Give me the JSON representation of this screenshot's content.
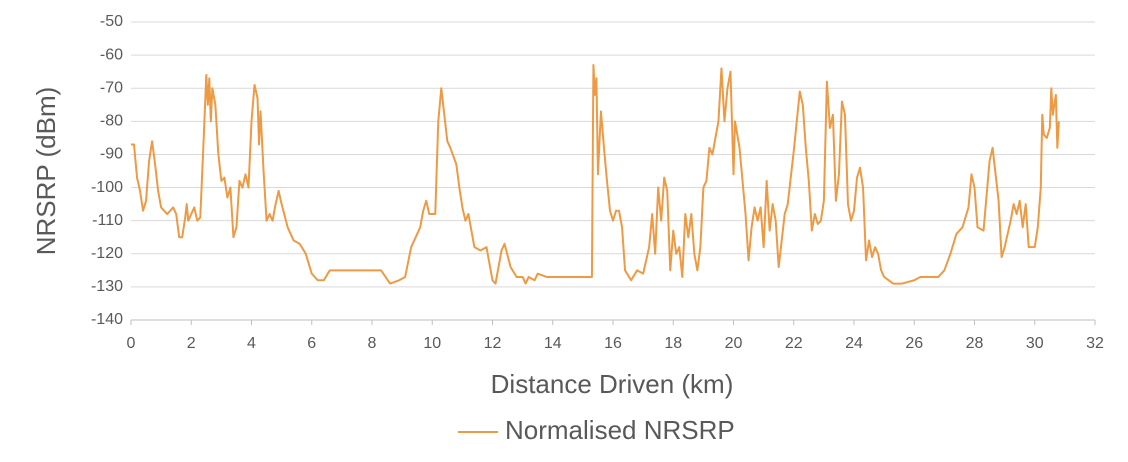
{
  "chart_data": {
    "type": "line",
    "x_label": "Distance Driven (km)",
    "y_label": "NRSRP (dBm)",
    "xlim": [
      0,
      32
    ],
    "xticks": [
      0,
      2,
      4,
      6,
      8,
      10,
      12,
      14,
      16,
      18,
      20,
      22,
      24,
      26,
      28,
      30,
      32
    ],
    "ylim": [
      -140,
      -50
    ],
    "yticks": [
      -140,
      -130,
      -120,
      -110,
      -100,
      -90,
      -80,
      -70,
      -60,
      -50
    ],
    "grid": true,
    "legend": "bottom",
    "x": [
      0,
      0.1,
      0.2,
      0.3,
      0.4,
      0.5,
      0.6,
      0.7,
      0.8,
      0.9,
      1.0,
      1.2,
      1.4,
      1.5,
      1.6,
      1.7,
      1.8,
      1.85,
      1.9,
      2.0,
      2.1,
      2.2,
      2.3,
      2.4,
      2.5,
      2.55,
      2.6,
      2.65,
      2.7,
      2.8,
      2.9,
      3.0,
      3.1,
      3.2,
      3.3,
      3.4,
      3.5,
      3.6,
      3.7,
      3.8,
      3.9,
      4.0,
      4.1,
      4.2,
      4.25,
      4.3,
      4.4,
      4.5,
      4.6,
      4.7,
      4.8,
      4.9,
      5.0,
      5.2,
      5.4,
      5.6,
      5.8,
      6.0,
      6.2,
      6.4,
      6.6,
      8.0,
      8.3,
      8.6,
      8.9,
      9.1,
      9.3,
      9.6,
      9.7,
      9.8,
      9.9,
      10.1,
      10.2,
      10.3,
      10.4,
      10.5,
      10.6,
      10.8,
      10.9,
      11.0,
      11.1,
      11.2,
      11.4,
      11.6,
      11.8,
      12.0,
      12.1,
      12.3,
      12.4,
      12.6,
      12.8,
      13.0,
      13.1,
      13.2,
      13.4,
      13.5,
      13.8,
      15.3,
      15.35,
      15.4,
      15.45,
      15.5,
      15.6,
      15.7,
      15.8,
      15.9,
      16.0,
      16.1,
      16.2,
      16.3,
      16.4,
      16.6,
      16.8,
      17.0,
      17.2,
      17.3,
      17.4,
      17.5,
      17.6,
      17.7,
      17.8,
      17.9,
      18.0,
      18.1,
      18.2,
      18.3,
      18.4,
      18.5,
      18.6,
      18.7,
      18.8,
      18.9,
      19.0,
      19.1,
      19.2,
      19.3,
      19.5,
      19.6,
      19.7,
      19.8,
      19.9,
      20.0,
      20.05,
      20.2,
      20.4,
      20.5,
      20.6,
      20.7,
      20.8,
      20.9,
      21.0,
      21.1,
      21.2,
      21.3,
      21.4,
      21.5,
      21.6,
      21.7,
      21.8,
      22.0,
      22.2,
      22.3,
      22.4,
      22.5,
      22.6,
      22.7,
      22.8,
      22.9,
      23.0,
      23.1,
      23.2,
      23.3,
      23.4,
      23.5,
      23.6,
      23.7,
      23.8,
      23.9,
      24.0,
      24.1,
      24.2,
      24.3,
      24.4,
      24.5,
      24.6,
      24.7,
      24.8,
      24.9,
      25.0,
      25.3,
      25.6,
      26.0,
      26.2,
      26.8,
      27.0,
      27.2,
      27.4,
      27.6,
      27.8,
      27.9,
      28.0,
      28.1,
      28.3,
      28.5,
      28.6,
      28.8,
      28.9,
      29.0,
      29.2,
      29.3,
      29.4,
      29.5,
      29.6,
      29.7,
      29.8,
      30.0,
      30.1,
      30.2,
      30.25,
      30.3,
      30.4,
      30.5,
      30.55,
      30.6,
      30.7,
      30.75,
      30.8
    ],
    "series": [
      {
        "name": "Normalised NRSRP",
        "color": "#ed9a45",
        "values": [
          -87,
          -87,
          -97,
          -101,
          -107,
          -104,
          -92,
          -86,
          -93,
          -101,
          -106,
          -108,
          -106,
          -108,
          -115,
          -115,
          -109,
          -105,
          -110,
          -108,
          -106,
          -110,
          -109,
          -88,
          -66,
          -75,
          -67,
          -80,
          -70,
          -75,
          -90,
          -98,
          -97,
          -103,
          -100,
          -115,
          -112,
          -98,
          -100,
          -96,
          -100,
          -80,
          -69,
          -73,
          -87,
          -77,
          -95,
          -110,
          -108,
          -110,
          -105,
          -101,
          -105,
          -112,
          -116,
          -117,
          -120,
          -126,
          -128,
          -128,
          -125,
          -125,
          -125,
          -129,
          -128,
          -127,
          -118,
          -112,
          -107,
          -104,
          -108,
          -108,
          -80,
          -70,
          -78,
          -86,
          -88,
          -93,
          -100,
          -106,
          -110,
          -108,
          -118,
          -119,
          -118,
          -128,
          -129,
          -119,
          -117,
          -124,
          -127,
          -127,
          -129,
          -127,
          -128,
          -126,
          -127,
          -127,
          -63,
          -72,
          -67,
          -96,
          -77,
          -88,
          -98,
          -107,
          -110,
          -107,
          -107,
          -112,
          -125,
          -128,
          -125,
          -126,
          -118,
          -108,
          -120,
          -100,
          -110,
          -97,
          -101,
          -125,
          -113,
          -120,
          -118,
          -127,
          -108,
          -115,
          -108,
          -120,
          -125,
          -118,
          -100,
          -98,
          -88,
          -90,
          -80,
          -64,
          -80,
          -70,
          -65,
          -96,
          -80,
          -88,
          -108,
          -122,
          -112,
          -106,
          -110,
          -106,
          -118,
          -98,
          -113,
          -105,
          -110,
          -124,
          -116,
          -108,
          -105,
          -89,
          -71,
          -75,
          -88,
          -98,
          -113,
          -108,
          -111,
          -110,
          -104,
          -68,
          -82,
          -78,
          -104,
          -96,
          -74,
          -78,
          -105,
          -110,
          -107,
          -97,
          -94,
          -100,
          -122,
          -116,
          -121,
          -118,
          -120,
          -125,
          -127,
          -129,
          -129,
          -128,
          -127,
          -127,
          -125,
          -120,
          -114,
          -112,
          -106,
          -96,
          -100,
          -112,
          -113,
          -92,
          -88,
          -104,
          -121,
          -118,
          -110,
          -105,
          -108,
          -104,
          -112,
          -105,
          -118,
          -118,
          -112,
          -100,
          -78,
          -84,
          -85,
          -82,
          -70,
          -78,
          -72,
          -88,
          -80
        ]
      }
    ]
  }
}
